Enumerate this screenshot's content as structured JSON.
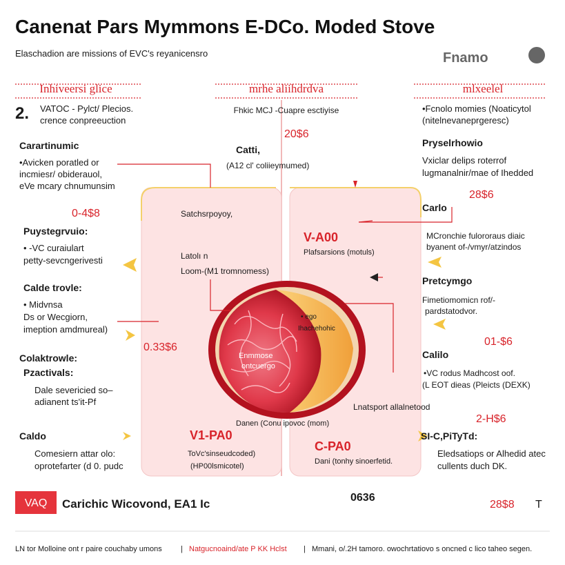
{
  "header": {
    "title": "Canenat Pars Mymmons E-DCo. Moded Stove",
    "subtitle": "Elaschadion are missions of EVC's reyanicensro",
    "logo": "Fnamo"
  },
  "left": {
    "heading": "Inhiveersi glice",
    "number": "2.",
    "intro": [
      "VATOC - Pylct/ Plecios.",
      "crence conpreeuction"
    ],
    "blocks": [
      {
        "title": "Carartinumic",
        "lines": [
          "•Avicken poratled or",
          "incmiesr/ obiderauol,",
          "eVe mcary chnumunsim"
        ]
      },
      {
        "title": "Puystegrvuio:",
        "lines": [
          "• -VC curaiulart",
          "petty-sevcngerivesti"
        ]
      },
      {
        "title": "Calde trovle:",
        "lines": [
          "• Midvnsa",
          "Ds or Wecgiorn,",
          "imeption amdmureal)"
        ]
      },
      {
        "title": "Colaktrowle:",
        "subtitle": "Pzactivals:",
        "lines": [
          "Dale severicied so–",
          "adianent ts'it-Pf"
        ]
      },
      {
        "title": "Caldo",
        "lines": [
          "Comesiern attar olo:",
          "oprotefarter (d 0. pudc"
        ]
      }
    ],
    "stats": [
      "0-4$8",
      "0.33$6"
    ]
  },
  "middle": {
    "heading": "mrhe aliihdrdva",
    "intro": "Fhkic MCJ -Cuapre esctiyise",
    "stat": "20$6",
    "callout_title": "Catti,",
    "callout_text": "(A12 cl' coliieymumed)",
    "labels": [
      "Satchsrpoyoy,",
      "Latolı n",
      "Loom-(M1 tromnomess)",
      "V-A00",
      "Plafsarsions (motuls)",
      "• ego",
      "Ihachehohic",
      "Enmmose",
      "ontcuergo",
      "Lnatsport allalnetood",
      "Danen (Conu ipovoc (mom)",
      "V1-PA0",
      "C-PA0",
      "ToVc'sinseudcoded)",
      "(HP00lsmicotel)",
      "Dani (tonhy sinoerfetid."
    ]
  },
  "right": {
    "heading": "mlxeelel",
    "intro": [
      "•Fcnolo momies (Noaticytol",
      "(nitelnevaneprgeresc)"
    ],
    "blocks": [
      {
        "title": "Pryselrhowio",
        "lines": [
          "Vxiclar delips roterrof",
          "lugmanalnir/mae of Ihedded"
        ]
      },
      {
        "title": "Carlo",
        "lines": [
          "MCronchie fulororaus diaic",
          "byanent of-/vmyr/atzindos"
        ]
      },
      {
        "title": "Pretcymgo",
        "lines": [
          "Fimetiomomicn rof/-",
          "pardstatodvor."
        ]
      },
      {
        "title": "Calilo",
        "lines": [
          "•VC rodus Madhcost oof.",
          "(L EOT dieas (Pleicts (DEXK)"
        ]
      },
      {
        "title": "SI-C,PiTyTd:",
        "lines": [
          "Eledsatiops or Alhedid atec",
          "cullents duch DK."
        ]
      }
    ],
    "stats": [
      "28$6",
      "01-$6",
      "2-H$6"
    ]
  },
  "bottom": {
    "badge": "VAQ",
    "text": "Carichic Wicovond, EA1 Ic",
    "code": "0636",
    "stat": "28$8",
    "mark": "T"
  },
  "footer": [
    "LN tor Molloine ont r paire couchaby umons",
    "|",
    "Natgucnoaind/ate P KK Hclst",
    "|",
    "Mmani, o/.2H tamoro. owochrtatiovo s oncned c lico taheo segen."
  ]
}
